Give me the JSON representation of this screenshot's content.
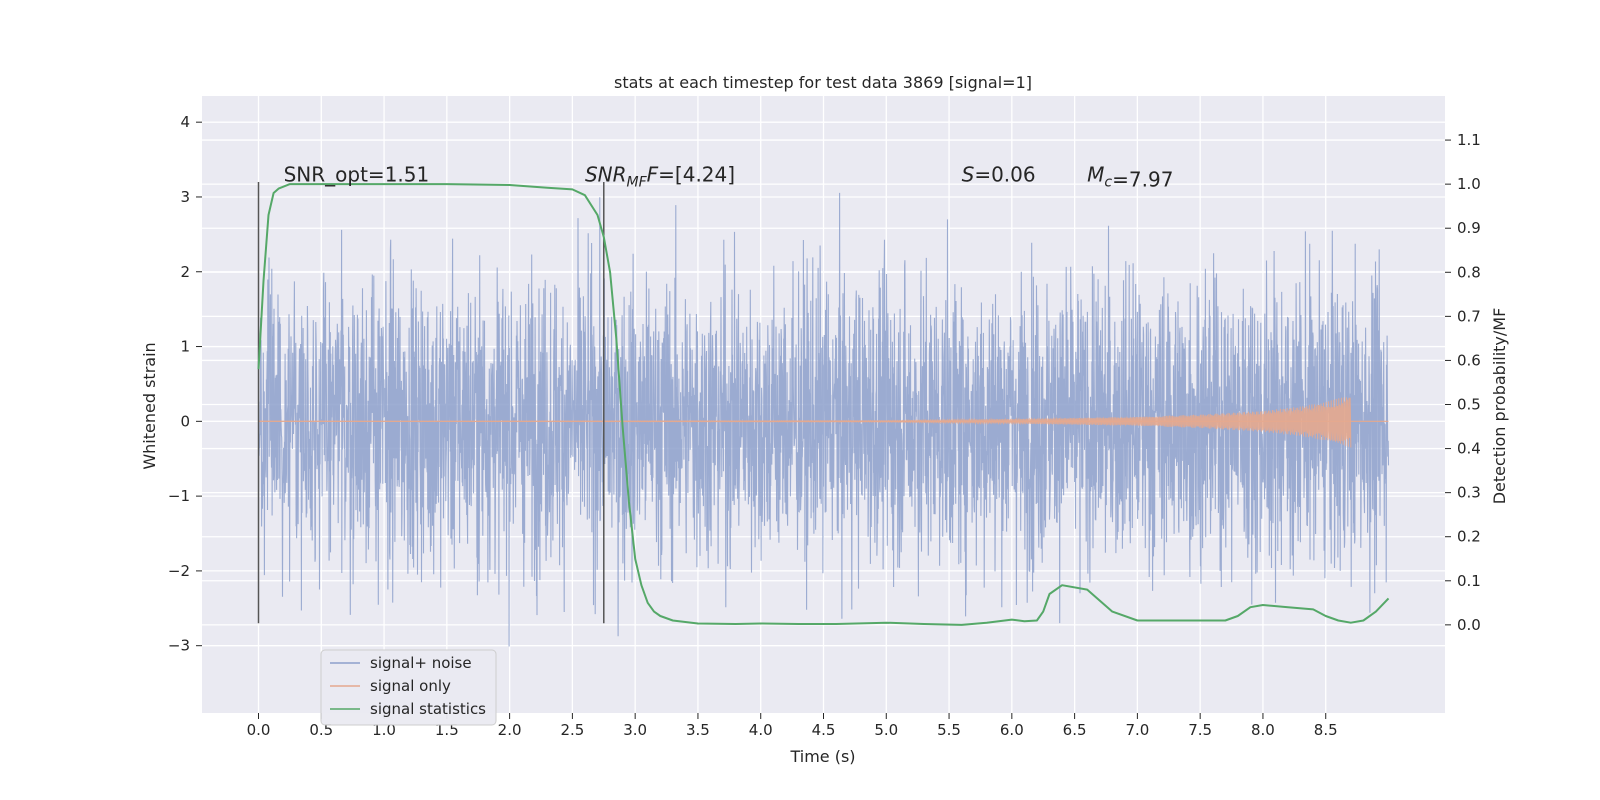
{
  "chart_data": {
    "type": "line",
    "title": "stats at each timestep for test data 3869 [signal=1]",
    "xlabel": "Time (s)",
    "ylabel": "Whitened strain",
    "ylabel_right": "Detection probability/MF",
    "xlim": [
      -0.45,
      9.45
    ],
    "ylim": [
      -3.9,
      4.35
    ],
    "ylim_right": [
      -0.2,
      1.2
    ],
    "x_ticks": [
      0.0,
      0.5,
      1.0,
      1.5,
      2.0,
      2.5,
      3.0,
      3.5,
      4.0,
      4.5,
      5.0,
      5.5,
      6.0,
      6.5,
      7.0,
      7.5,
      8.0,
      8.5
    ],
    "x_tick_labels": [
      "0.0",
      "0.5",
      "1.0",
      "1.5",
      "2.0",
      "2.5",
      "3.0",
      "3.5",
      "4.0",
      "4.5",
      "5.0",
      "5.5",
      "6.0",
      "6.5",
      "7.0",
      "7.5",
      "8.0",
      "8.5"
    ],
    "y_ticks": [
      -3,
      -2,
      -1,
      0,
      1,
      2,
      3,
      4
    ],
    "y_tick_labels": [
      "−3",
      "−2",
      "−1",
      "0",
      "1",
      "2",
      "3",
      "4"
    ],
    "y_ticks_right": [
      0.0,
      0.1,
      0.2,
      0.3,
      0.4,
      0.5,
      0.6,
      0.7,
      0.8,
      0.9,
      1.0,
      1.1
    ],
    "y_tick_labels_right": [
      "0.0",
      "0.1",
      "0.2",
      "0.3",
      "0.4",
      "0.5",
      "0.6",
      "0.7",
      "0.8",
      "0.9",
      "1.0",
      "1.1"
    ],
    "grid": true,
    "legend_position": "lower-left",
    "series": [
      {
        "name": "signal+ noise",
        "color": "#8da0cb",
        "duration": 9.0,
        "envelope": [
          [
            0.0,
            2.6,
            -2.7
          ],
          [
            0.25,
            2.8,
            -2.9
          ],
          [
            0.5,
            2.9,
            -3.2
          ],
          [
            0.75,
            3.0,
            -3.1
          ],
          [
            1.0,
            3.3,
            -3.0
          ],
          [
            1.25,
            2.9,
            -3.4
          ],
          [
            1.5,
            3.0,
            -3.2
          ],
          [
            1.75,
            3.6,
            -3.0
          ],
          [
            2.0,
            3.3,
            -3.1
          ],
          [
            2.25,
            2.9,
            -2.9
          ],
          [
            2.5,
            3.2,
            -3.1
          ],
          [
            2.75,
            3.4,
            -3.0
          ],
          [
            3.0,
            3.5,
            -3.1
          ],
          [
            3.25,
            3.3,
            -3.3
          ],
          [
            3.5,
            3.2,
            -3.4
          ],
          [
            3.75,
            3.3,
            -3.0
          ],
          [
            4.0,
            4.0,
            -3.0
          ],
          [
            4.25,
            3.4,
            -3.2
          ],
          [
            4.5,
            3.1,
            -3.0
          ],
          [
            4.75,
            3.4,
            -3.1
          ],
          [
            5.0,
            3.1,
            -3.2
          ],
          [
            5.25,
            3.3,
            -3.2
          ],
          [
            5.5,
            3.1,
            -3.3
          ],
          [
            5.75,
            3.3,
            -3.4
          ],
          [
            6.0,
            3.0,
            -3.2
          ],
          [
            6.25,
            3.2,
            -3.0
          ],
          [
            6.5,
            3.4,
            -3.3
          ],
          [
            6.75,
            3.2,
            -3.1
          ],
          [
            7.0,
            3.1,
            -3.3
          ],
          [
            7.25,
            3.0,
            -3.4
          ],
          [
            7.5,
            3.0,
            -3.4
          ],
          [
            7.75,
            3.3,
            -3.0
          ],
          [
            8.0,
            3.1,
            -3.0
          ],
          [
            8.25,
            3.1,
            -3.0
          ],
          [
            8.5,
            3.0,
            -3.1
          ],
          [
            8.75,
            3.3,
            -3.0
          ],
          [
            9.0,
            3.3,
            -3.0
          ]
        ]
      },
      {
        "name": "signal only",
        "color": "#e5a88e",
        "duration": 8.7,
        "amplitude_envelope": [
          [
            0.0,
            0.0
          ],
          [
            5.0,
            0.01
          ],
          [
            6.0,
            0.03
          ],
          [
            7.0,
            0.06
          ],
          [
            7.5,
            0.09
          ],
          [
            8.0,
            0.14
          ],
          [
            8.3,
            0.2
          ],
          [
            8.5,
            0.26
          ],
          [
            8.65,
            0.33
          ],
          [
            8.7,
            0.35
          ]
        ]
      },
      {
        "name": "signal statistics",
        "color": "#55a868",
        "axis": "right",
        "x": [
          0.0,
          0.04,
          0.08,
          0.12,
          0.16,
          0.25,
          0.5,
          1.0,
          1.5,
          2.0,
          2.3,
          2.5,
          2.6,
          2.7,
          2.75,
          2.8,
          2.85,
          2.9,
          2.95,
          3.0,
          3.05,
          3.1,
          3.15,
          3.2,
          3.3,
          3.5,
          3.8,
          4.0,
          4.3,
          4.6,
          5.0,
          5.3,
          5.6,
          5.8,
          6.0,
          6.1,
          6.2,
          6.25,
          6.3,
          6.4,
          6.6,
          6.8,
          7.0,
          7.2,
          7.5,
          7.7,
          7.8,
          7.9,
          8.0,
          8.2,
          8.4,
          8.5,
          8.6,
          8.7,
          8.8,
          8.9,
          9.0
        ],
        "y": [
          0.58,
          0.78,
          0.93,
          0.98,
          0.99,
          1.0,
          1.0,
          1.0,
          1.0,
          0.998,
          0.992,
          0.988,
          0.975,
          0.93,
          0.88,
          0.8,
          0.65,
          0.45,
          0.28,
          0.15,
          0.09,
          0.05,
          0.03,
          0.02,
          0.01,
          0.003,
          0.002,
          0.003,
          0.002,
          0.002,
          0.005,
          0.002,
          0.0,
          0.005,
          0.012,
          0.008,
          0.01,
          0.03,
          0.07,
          0.09,
          0.08,
          0.03,
          0.01,
          0.01,
          0.01,
          0.01,
          0.02,
          0.04,
          0.045,
          0.04,
          0.035,
          0.02,
          0.01,
          0.005,
          0.01,
          0.03,
          0.06
        ]
      }
    ],
    "vertical_lines": [
      {
        "x": 0.0,
        "y_top": 3.2,
        "y_bottom": -2.7,
        "color": "#555555"
      },
      {
        "x": 2.75,
        "y_top": 3.2,
        "y_bottom": -2.7,
        "color": "#555555"
      }
    ],
    "annotations": [
      {
        "x": 0.2,
        "y": 3.3,
        "prefix": "SNR_opt=",
        "sub": "",
        "suffix": "",
        "value": "1.51",
        "italic": false
      },
      {
        "x": 2.6,
        "y": 3.3,
        "prefix": "SNR",
        "sub": "MF",
        "suffix": "F",
        "value": "=[4.24]",
        "italic": true
      },
      {
        "x": 5.6,
        "y": 3.3,
        "prefix": "S",
        "sub": "",
        "suffix": "",
        "value": "=0.06",
        "italic": true
      },
      {
        "x": 6.6,
        "y": 3.3,
        "prefix": "M",
        "sub": "c",
        "suffix": "",
        "value": "=7.97",
        "italic": true
      }
    ]
  }
}
